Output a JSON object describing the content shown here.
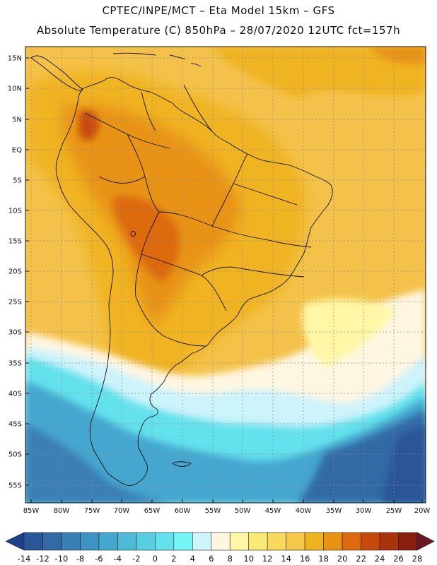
{
  "header": {
    "line1": "CPTEC/INPE/MCT –  Eta Model 15km – GFS",
    "line2": "Absolute Temperature (C) 850hPa – 28/07/2020 12UTC fct=157h"
  },
  "map": {
    "lat_labels": [
      "15N",
      "10N",
      "5N",
      "EQ",
      "5S",
      "10S",
      "15S",
      "20S",
      "25S",
      "30S",
      "35S",
      "40S",
      "45S",
      "50S",
      "55S"
    ],
    "lon_labels": [
      "85W",
      "80W",
      "75W",
      "70W",
      "65W",
      "60W",
      "55W",
      "50W",
      "45W",
      "40W",
      "35W",
      "30W",
      "25W",
      "20W"
    ]
  },
  "colorbar": {
    "labels": [
      "-14",
      "-12",
      "-10",
      "-8",
      "-6",
      "-4",
      "-2",
      "0",
      "2",
      "4",
      "6",
      "8",
      "10",
      "12",
      "14",
      "16",
      "18",
      "20",
      "22",
      "24",
      "26",
      "28"
    ],
    "colors": [
      "#1f3f8c",
      "#2a5597",
      "#326aa6",
      "#3a7fb5",
      "#3f93c2",
      "#45a7cf",
      "#4dbbd8",
      "#57cee1",
      "#63e1ec",
      "#74f6f9",
      "#cdf3fb",
      "#fff6e2",
      "#fff7a6",
      "#fbe976",
      "#f7d95c",
      "#f5c84a",
      "#f0b320",
      "#e89314",
      "#dd6a0e",
      "#c74a0c",
      "#a8330c",
      "#86200d",
      "#6c1822"
    ]
  }
}
